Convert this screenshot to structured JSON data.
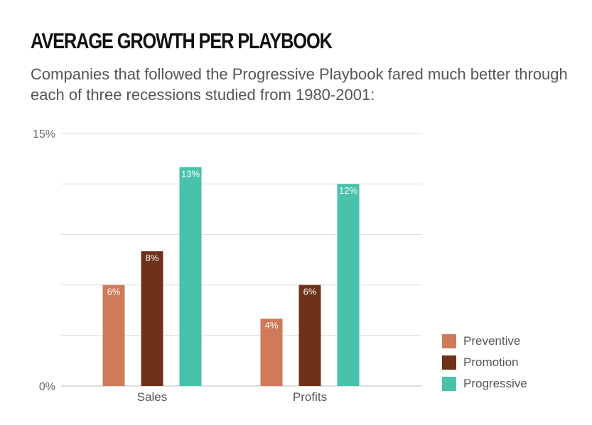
{
  "title": "AVERAGE GROWTH PER PLAYBOOK",
  "subtitle": "Companies that followed the Progressive Playbook fared much better through each of three recessions studied from 1980-2001:",
  "chart_data": {
    "type": "bar",
    "categories": [
      "Sales",
      "Profits"
    ],
    "series": [
      {
        "name": "Preventive",
        "values": [
          6,
          4
        ],
        "labels": [
          "6%",
          "4%"
        ],
        "color": "#CD7B5A"
      },
      {
        "name": "Promotion",
        "values": [
          8,
          6
        ],
        "labels": [
          "8%",
          "6%"
        ],
        "color": "#6D3219"
      },
      {
        "name": "Progressive",
        "values": [
          13,
          12
        ],
        "labels": [
          "13%",
          "12%"
        ],
        "color": "#48C2AB"
      }
    ],
    "ylim": [
      0,
      15
    ],
    "yticks": [
      {
        "value": 0,
        "label": "0%"
      },
      {
        "value": 15,
        "label": "15%"
      }
    ],
    "gridlines": [
      0,
      3,
      6,
      9,
      12,
      15
    ],
    "grid": true,
    "legend_position": "bottom-right",
    "xlabel": "",
    "ylabel": ""
  }
}
